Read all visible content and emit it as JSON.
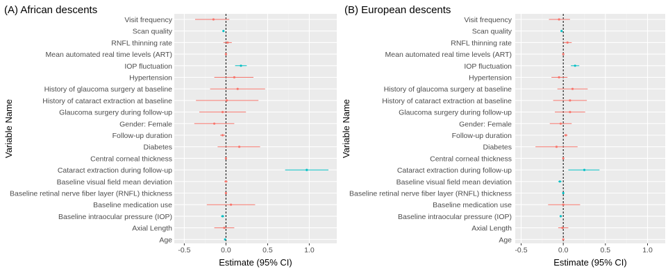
{
  "figure": {
    "ylabel": "Variable Name",
    "xlabel": "Estimate (95% CI)"
  },
  "colors": {
    "panel_bg": "#ebebeb",
    "grid_major": "#ffffff",
    "grid_minor": "#f3f3f3",
    "positive": "#f8766d",
    "negative": "#00bfc4",
    "zero_line": "#000000",
    "text": "#4d4d4d"
  },
  "chart_data": [
    {
      "type": "forest",
      "title": "(A) African descents",
      "xlabel": "Estimate (95% CI)",
      "ylabel": "Variable Name",
      "xlim": [
        -0.62,
        1.33
      ],
      "xticks": [
        -0.5,
        0.0,
        0.5,
        1.0
      ],
      "xtick_labels": [
        "-0.5",
        "0.0",
        "0.5",
        "1.0"
      ],
      "reference_line": 0,
      "grid": true,
      "rows": [
        {
          "label": "Visit frequency",
          "estimate": -0.15,
          "low": -0.37,
          "high": 0.04,
          "sign": "negative-est"
        },
        {
          "label": "Scan quality",
          "estimate": -0.03,
          "low": -0.04,
          "high": -0.02,
          "sign": "neg"
        },
        {
          "label": "RNFL thinning rate",
          "estimate": 0.02,
          "low": -0.03,
          "high": 0.07,
          "sign": "pos"
        },
        {
          "label": "Mean automated real time levels (ART)",
          "estimate": 0.0,
          "low": -0.01,
          "high": 0.01,
          "sign": "pos"
        },
        {
          "label": "IOP fluctuation",
          "estimate": 0.18,
          "low": 0.11,
          "high": 0.25,
          "sign": "neg"
        },
        {
          "label": "Hypertension",
          "estimate": 0.1,
          "low": -0.14,
          "high": 0.33,
          "sign": "pos"
        },
        {
          "label": "History of glaucoma surgery at baseline",
          "estimate": 0.14,
          "low": -0.19,
          "high": 0.47,
          "sign": "pos"
        },
        {
          "label": "History of cataract extraction at baseline",
          "estimate": 0.01,
          "low": -0.36,
          "high": 0.39,
          "sign": "pos"
        },
        {
          "label": "Glaucoma surgery during follow-up",
          "estimate": -0.04,
          "low": -0.32,
          "high": 0.24,
          "sign": "pos"
        },
        {
          "label": "Gender: Female",
          "estimate": -0.14,
          "low": -0.38,
          "high": 0.1,
          "sign": "pos"
        },
        {
          "label": "Follow-up duration",
          "estimate": -0.04,
          "low": -0.07,
          "high": -0.01,
          "sign": "pos"
        },
        {
          "label": "Diabetes",
          "estimate": 0.16,
          "low": -0.1,
          "high": 0.41,
          "sign": "pos"
        },
        {
          "label": "Central corneal thickness",
          "estimate": 0.0,
          "low": 0.0,
          "high": 0.0,
          "sign": "pos"
        },
        {
          "label": "Cataract extraction during follow-up",
          "estimate": 0.97,
          "low": 0.71,
          "high": 1.23,
          "sign": "neg"
        },
        {
          "label": "Baseline visual field mean deviation",
          "estimate": 0.0,
          "low": -0.02,
          "high": 0.02,
          "sign": "pos"
        },
        {
          "label": "Baseline retinal nerve fiber layer (RNFL) thickness",
          "estimate": 0.0,
          "low": -0.01,
          "high": 0.01,
          "sign": "pos"
        },
        {
          "label": "Baseline medication use",
          "estimate": 0.06,
          "low": -0.23,
          "high": 0.35,
          "sign": "pos"
        },
        {
          "label": "Baseline intraocular pressure (IOP)",
          "estimate": -0.04,
          "low": -0.06,
          "high": -0.02,
          "sign": "neg"
        },
        {
          "label": "Axial Length",
          "estimate": -0.02,
          "low": -0.14,
          "high": 0.1,
          "sign": "pos"
        },
        {
          "label": "Age",
          "estimate": -0.01,
          "low": -0.02,
          "high": 0.0,
          "sign": "neg"
        }
      ]
    },
    {
      "type": "forest",
      "title": "(B) European descents",
      "xlabel": "Estimate (95% CI)",
      "ylabel": "Variable Name",
      "xlim": [
        -0.57,
        1.21
      ],
      "xticks": [
        -0.5,
        0.0,
        0.5,
        1.0
      ],
      "xtick_labels": [
        "-0.5",
        "0.0",
        "0.5",
        "1.0"
      ],
      "reference_line": 0,
      "grid": true,
      "rows": [
        {
          "label": "Visit frequency",
          "estimate": -0.05,
          "low": -0.17,
          "high": 0.08,
          "sign": "pos"
        },
        {
          "label": "Scan quality",
          "estimate": -0.02,
          "low": -0.03,
          "high": -0.01,
          "sign": "neg"
        },
        {
          "label": "RNFL thinning rate",
          "estimate": 0.05,
          "low": 0.0,
          "high": 0.1,
          "sign": "pos"
        },
        {
          "label": "Mean automated real time levels (ART)",
          "estimate": 0.0,
          "low": -0.01,
          "high": 0.01,
          "sign": "pos"
        },
        {
          "label": "IOP fluctuation",
          "estimate": 0.14,
          "low": 0.09,
          "high": 0.19,
          "sign": "neg"
        },
        {
          "label": "Hypertension",
          "estimate": -0.05,
          "low": -0.14,
          "high": 0.05,
          "sign": "pos"
        },
        {
          "label": "History of glaucoma surgery at baseline",
          "estimate": 0.11,
          "low": -0.07,
          "high": 0.29,
          "sign": "pos"
        },
        {
          "label": "History of cataract extraction at baseline",
          "estimate": 0.08,
          "low": -0.12,
          "high": 0.28,
          "sign": "pos"
        },
        {
          "label": "Glaucoma surgery during follow-up",
          "estimate": 0.08,
          "low": -0.1,
          "high": 0.26,
          "sign": "pos"
        },
        {
          "label": "Gender: Female",
          "estimate": -0.03,
          "low": -0.16,
          "high": 0.1,
          "sign": "pos"
        },
        {
          "label": "Follow-up duration",
          "estimate": 0.03,
          "low": 0.01,
          "high": 0.05,
          "sign": "pos"
        },
        {
          "label": "Diabetes",
          "estimate": -0.08,
          "low": -0.33,
          "high": 0.17,
          "sign": "pos"
        },
        {
          "label": "Central corneal thickness",
          "estimate": 0.0,
          "low": 0.0,
          "high": 0.0,
          "sign": "pos"
        },
        {
          "label": "Cataract extraction during follow-up",
          "estimate": 0.25,
          "low": 0.06,
          "high": 0.43,
          "sign": "neg"
        },
        {
          "label": "Baseline visual field mean deviation",
          "estimate": -0.04,
          "low": -0.06,
          "high": -0.02,
          "sign": "neg"
        },
        {
          "label": "Baseline retinal nerve fiber layer (RNFL) thickness",
          "estimate": 0.0,
          "low": -0.01,
          "high": 0.01,
          "sign": "neg"
        },
        {
          "label": "Baseline medication use",
          "estimate": 0.0,
          "low": -0.18,
          "high": 0.2,
          "sign": "pos"
        },
        {
          "label": "Baseline intraocular pressure (IOP)",
          "estimate": -0.03,
          "low": -0.04,
          "high": -0.02,
          "sign": "neg"
        },
        {
          "label": "Axial Length",
          "estimate": -0.01,
          "low": -0.06,
          "high": 0.06,
          "sign": "pos"
        },
        {
          "label": "Age",
          "estimate": 0.0,
          "low": -0.01,
          "high": 0.01,
          "sign": "pos"
        }
      ]
    }
  ]
}
